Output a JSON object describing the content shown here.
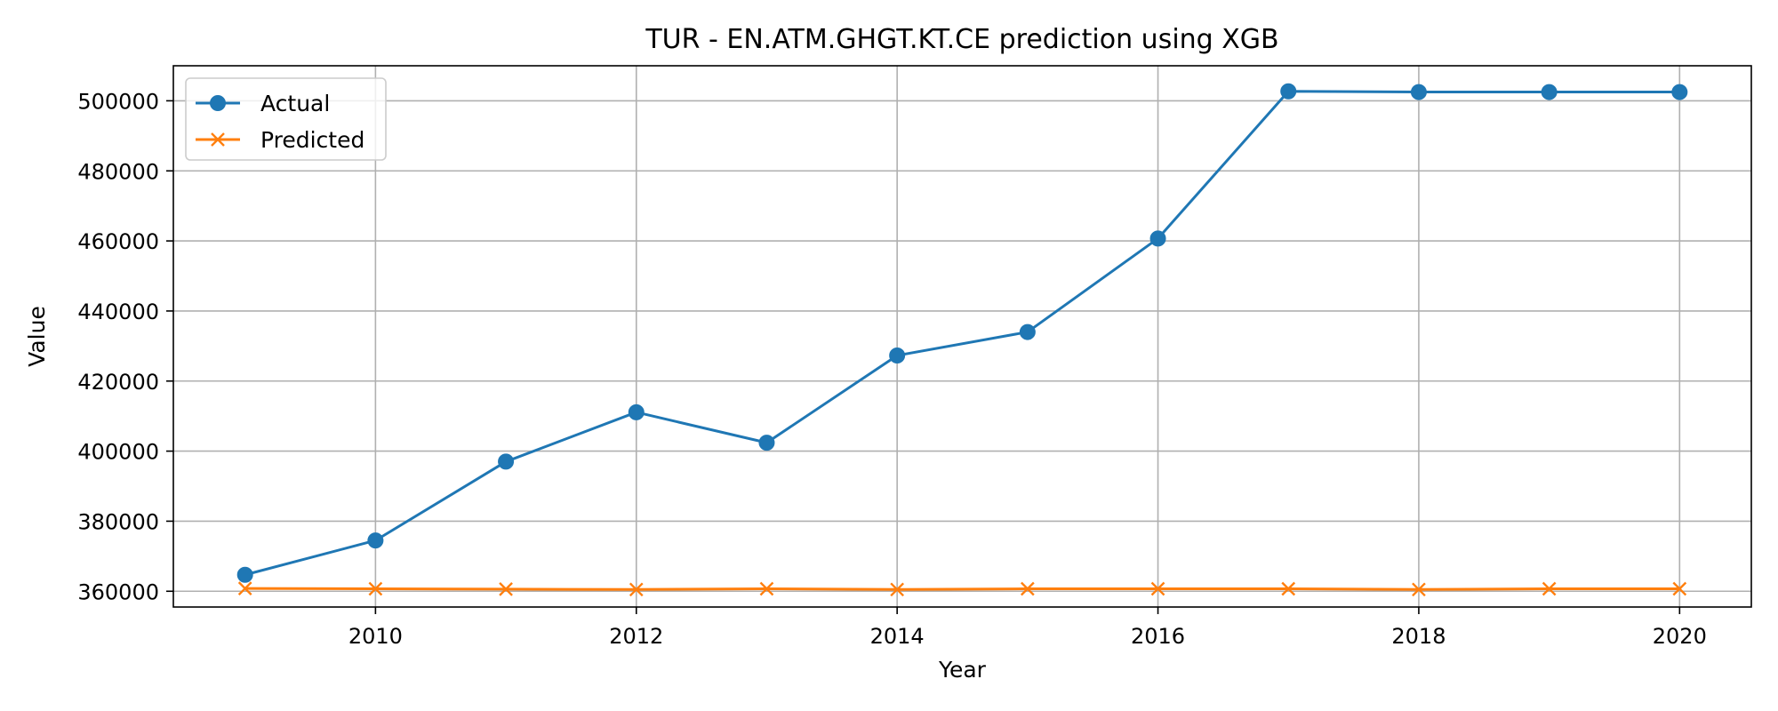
{
  "chart_data": {
    "type": "line",
    "title": "TUR - EN.ATM.GHGT.KT.CE prediction using XGB",
    "xlabel": "Year",
    "ylabel": "Value",
    "x": [
      2009,
      2010,
      2011,
      2012,
      2013,
      2014,
      2015,
      2016,
      2017,
      2018,
      2019,
      2020
    ],
    "xlim": [
      2008.45,
      2020.55
    ],
    "ylim": [
      355500,
      510000
    ],
    "xticks": [
      2010,
      2012,
      2014,
      2016,
      2018,
      2020
    ],
    "yticks": [
      360000,
      380000,
      400000,
      420000,
      440000,
      460000,
      480000,
      500000
    ],
    "grid": true,
    "legend_position": "top-left",
    "series": [
      {
        "name": "Actual",
        "color": "#1f77b4",
        "marker": "circle",
        "values": [
          364700,
          374500,
          397000,
          411100,
          402400,
          427300,
          434000,
          460700,
          502700,
          502500,
          502500,
          502500
        ]
      },
      {
        "name": "Predicted",
        "color": "#ff7f0e",
        "marker": "x",
        "values": [
          360800,
          360700,
          360600,
          360500,
          360700,
          360500,
          360700,
          360700,
          360700,
          360500,
          360700,
          360700
        ]
      }
    ]
  }
}
